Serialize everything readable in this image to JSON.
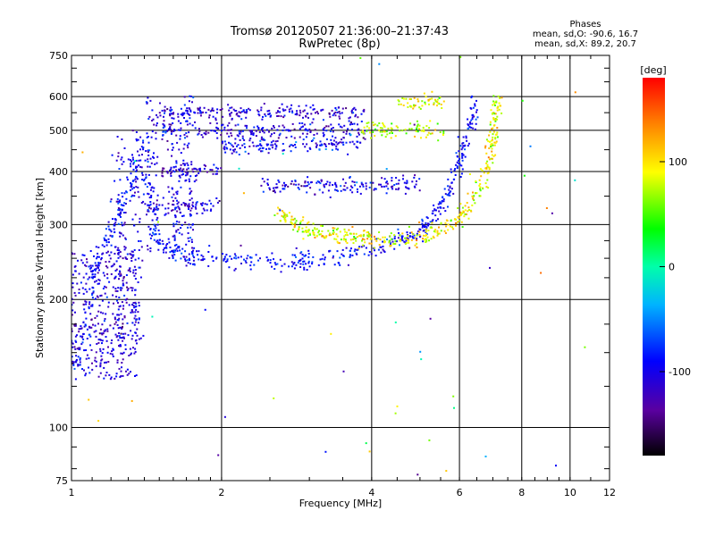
{
  "chart_data": {
    "type": "scatter",
    "title": "Tromsø 20120507 21:36:00–21:37:43",
    "subtitle": "RwPretec (8p)",
    "phases_header": "Phases",
    "phases_line1": "mean, sd,O: -90.6, 16.7",
    "phases_line2": "mean, sd,X:  89.2, 20.7",
    "xlabel": "Frequency [MHz]",
    "ylabel": "Stationary phase Virtual Height [km]",
    "x_scale": "log",
    "y_scale": "log",
    "xlim": [
      1,
      12
    ],
    "ylim": [
      75,
      750
    ],
    "x_ticks": [
      1,
      2,
      4,
      6,
      8,
      10,
      12
    ],
    "x_tick_labels": [
      "1",
      "2",
      "4",
      "6",
      "8",
      "10",
      "12"
    ],
    "y_ticks": [
      75,
      100,
      200,
      300,
      400,
      500,
      600,
      750
    ],
    "y_tick_labels": [
      "75",
      "100",
      "200",
      "300",
      "400",
      "500",
      "600",
      "750"
    ],
    "grid": true,
    "colorbar": {
      "label": "[deg]",
      "range": [
        -180,
        180
      ],
      "ticks": [
        100,
        0,
        -100
      ],
      "tick_labels": [
        "100",
        "0",
        "-100"
      ]
    },
    "o_trace": [
      [
        1.02,
        135
      ],
      [
        1.05,
        150
      ],
      [
        1.08,
        175
      ],
      [
        1.1,
        210
      ],
      [
        1.12,
        240
      ],
      [
        1.15,
        265
      ],
      [
        1.2,
        290
      ],
      [
        1.25,
        320
      ],
      [
        1.3,
        360
      ],
      [
        1.35,
        420
      ],
      [
        1.4,
        480
      ],
      [
        1.45,
        300
      ],
      [
        1.5,
        270
      ],
      [
        1.6,
        260
      ],
      [
        1.7,
        255
      ],
      [
        1.8,
        252
      ],
      [
        2.0,
        250
      ],
      [
        2.2,
        247
      ],
      [
        2.5,
        245
      ],
      [
        2.8,
        246
      ],
      [
        3.0,
        247
      ],
      [
        3.3,
        250
      ],
      [
        3.6,
        255
      ],
      [
        4.0,
        262
      ],
      [
        4.3,
        268
      ],
      [
        4.6,
        275
      ],
      [
        4.9,
        285
      ],
      [
        5.2,
        300
      ],
      [
        5.5,
        325
      ],
      [
        5.7,
        360
      ],
      [
        5.9,
        400
      ],
      [
        6.1,
        450
      ],
      [
        6.3,
        520
      ],
      [
        6.5,
        600
      ]
    ],
    "x_trace": [
      [
        2.6,
        320
      ],
      [
        2.8,
        300
      ],
      [
        3.0,
        290
      ],
      [
        3.3,
        285
      ],
      [
        3.7,
        280
      ],
      [
        4.0,
        278
      ],
      [
        4.5,
        276
      ],
      [
        5.0,
        280
      ],
      [
        5.5,
        290
      ],
      [
        6.0,
        310
      ],
      [
        6.4,
        340
      ],
      [
        6.7,
        380
      ],
      [
        6.9,
        430
      ],
      [
        7.0,
        480
      ],
      [
        7.1,
        540
      ],
      [
        7.15,
        600
      ]
    ],
    "upper_bands": [
      {
        "x_from": 1.5,
        "x_to": 3.9,
        "y": 550,
        "phase": -110
      },
      {
        "x_from": 1.5,
        "x_to": 3.9,
        "y": 500,
        "phase": -105
      },
      {
        "x_from": 2.0,
        "x_to": 3.8,
        "y": 460,
        "phase": -95
      },
      {
        "x_from": 1.5,
        "x_to": 2.0,
        "y": 400,
        "phase": -115
      },
      {
        "x_from": 2.4,
        "x_to": 5.0,
        "y": 370,
        "phase": -100
      },
      {
        "x_from": 1.4,
        "x_to": 2.0,
        "y": 330,
        "phase": -110
      },
      {
        "x_from": 3.8,
        "x_to": 5.6,
        "y": 500,
        "phase": 80
      },
      {
        "x_from": 4.5,
        "x_to": 5.7,
        "y": 580,
        "phase": 90
      }
    ],
    "low_cluster": {
      "x_from": 1.0,
      "x_to": 1.35,
      "y_from": 130,
      "y_to": 260,
      "phase": -110
    }
  }
}
